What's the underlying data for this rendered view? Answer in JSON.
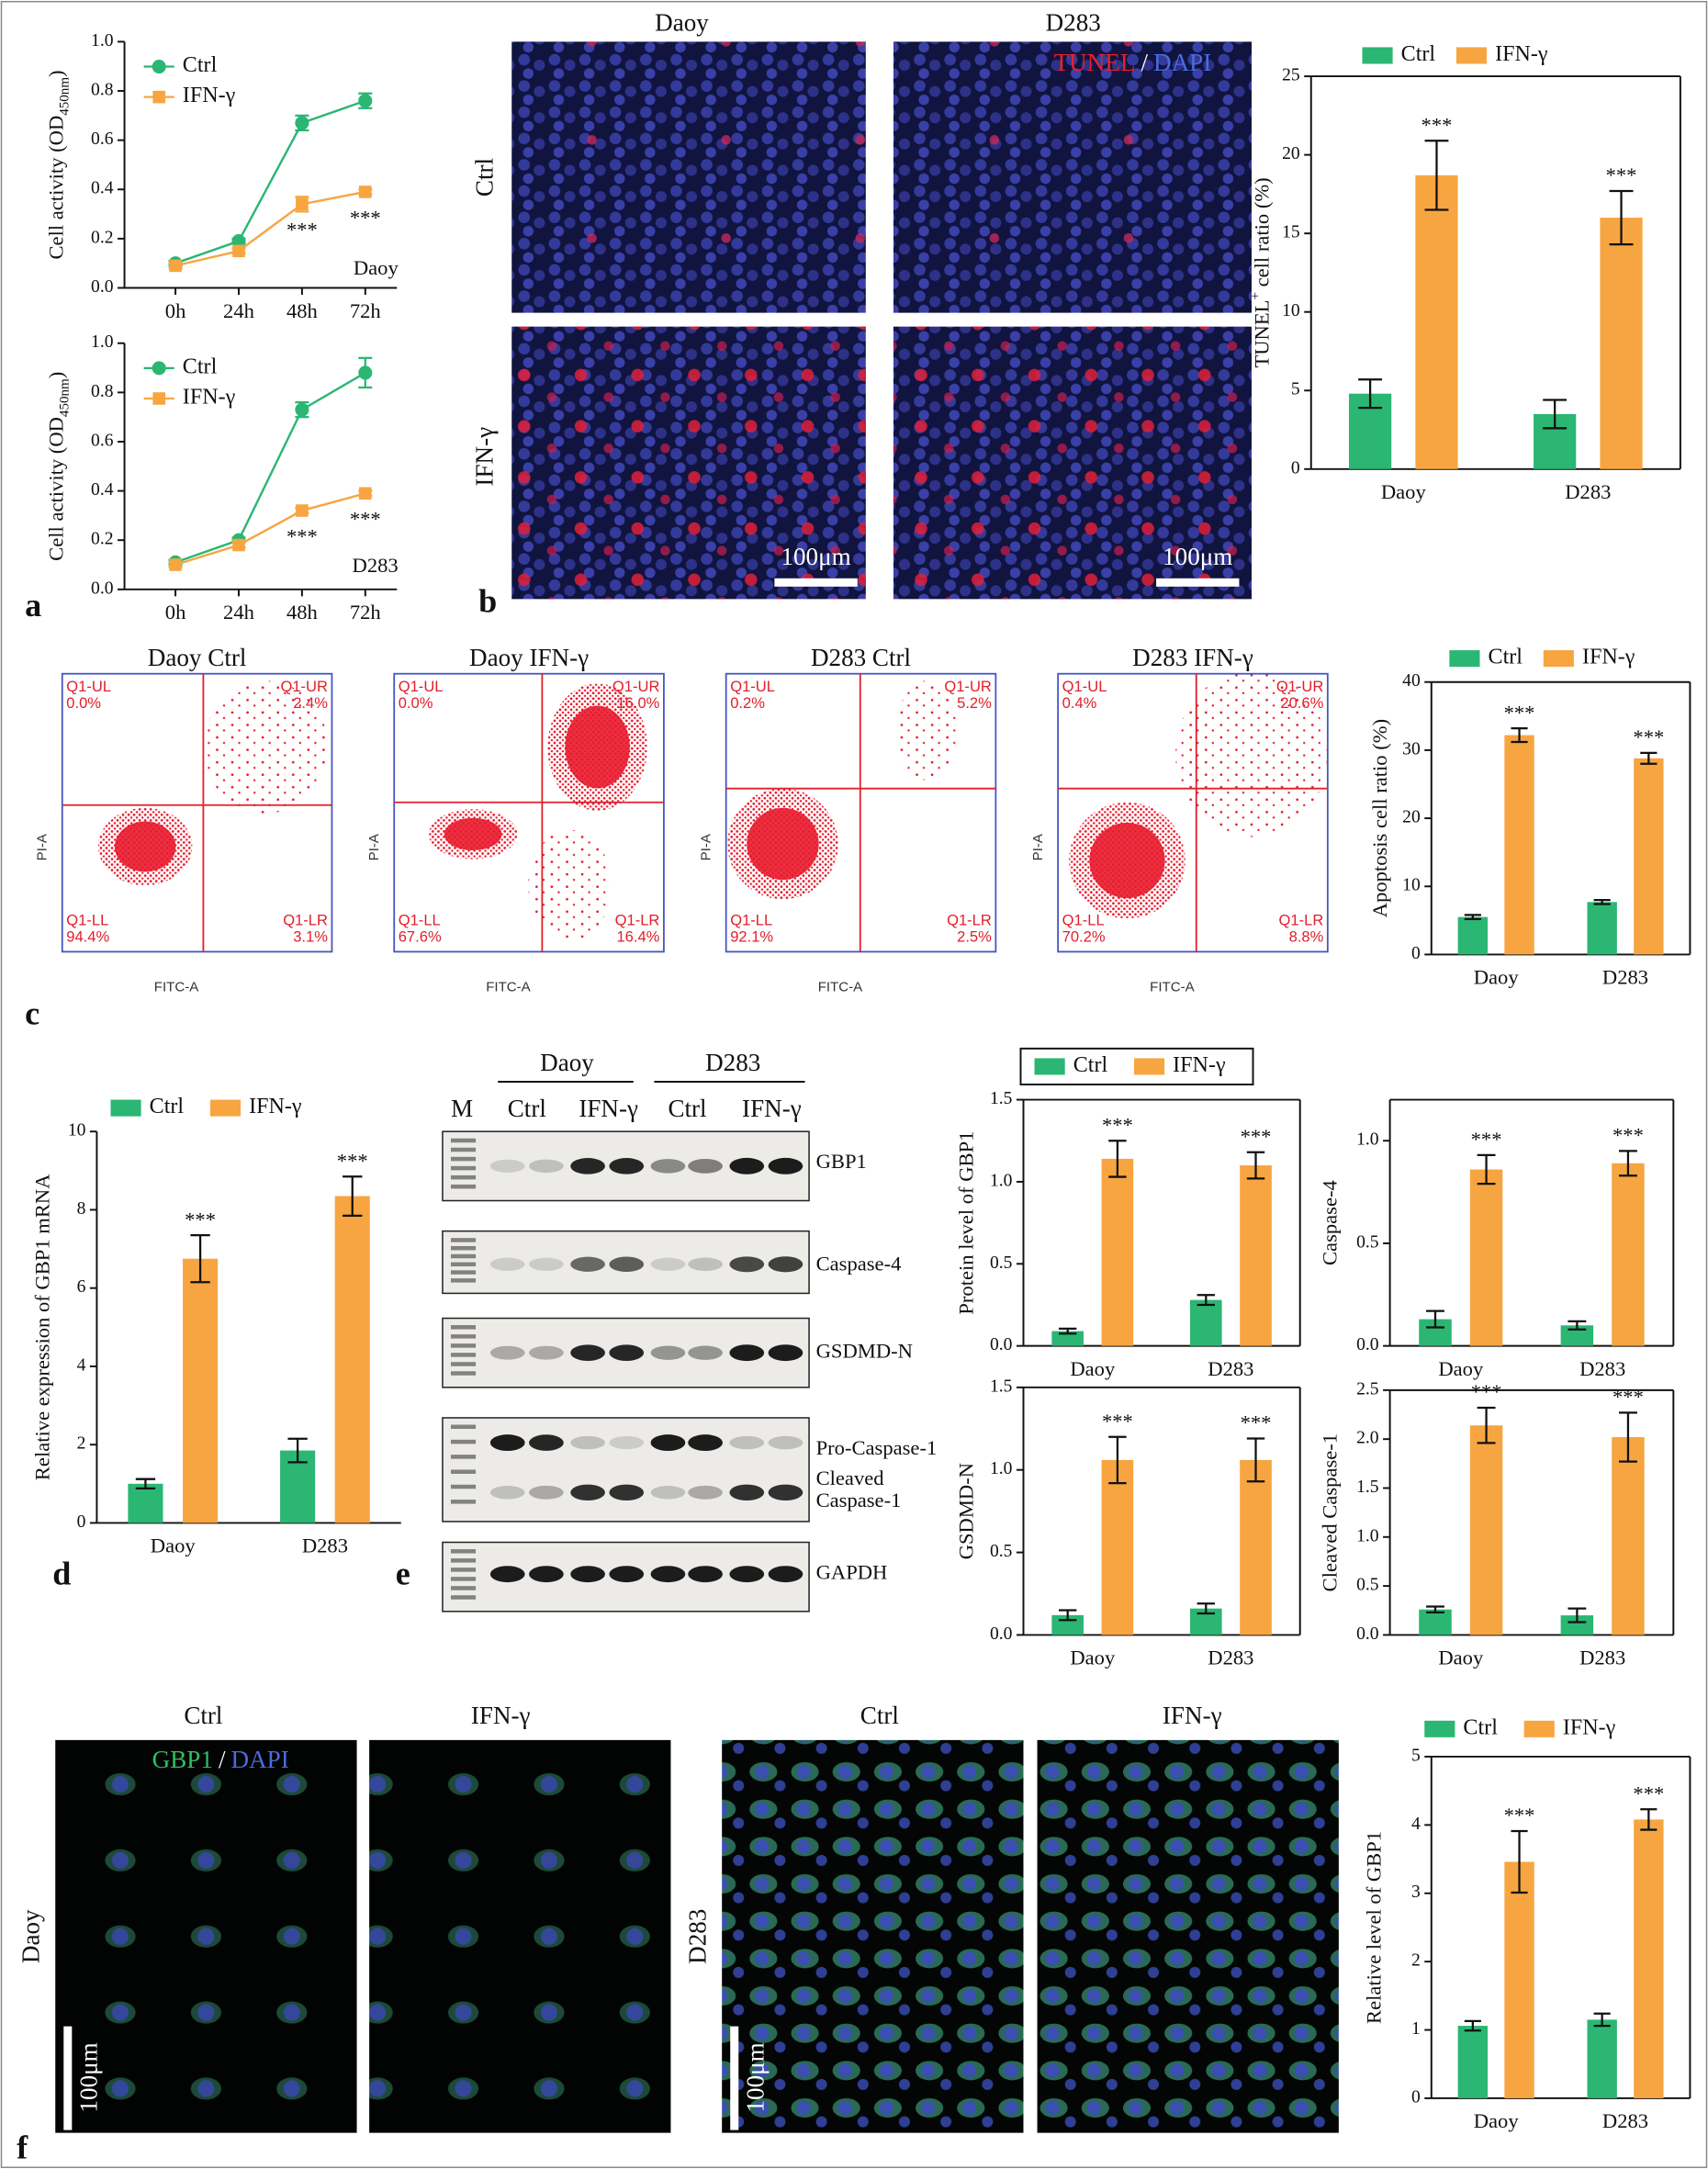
{
  "figure": {
    "panel_labels": [
      "a",
      "b",
      "c",
      "d",
      "e",
      "f"
    ],
    "tunel": {
      "columns": [
        "Daoy",
        "D283"
      ],
      "rows": [
        "Ctrl",
        "IFN-γ"
      ],
      "stain": [
        "TUNEL",
        "/",
        "DAPI"
      ],
      "scale_bar": "100μm"
    },
    "flow": {
      "x_label": "FITC-A",
      "y_label": "PI-A",
      "plots": [
        {
          "title": "Daoy Ctrl",
          "quadrants": [
            [
              "Q1-UL",
              "0.0%"
            ],
            [
              "Q1-UR",
              "2.4%"
            ],
            [
              "Q1-LL",
              "94.4%"
            ],
            [
              "Q1-LR",
              "3.1%"
            ]
          ]
        },
        {
          "title": "Daoy IFN-γ",
          "quadrants": [
            [
              "Q1-UL",
              "0.0%"
            ],
            [
              "Q1-UR",
              "16.0%"
            ],
            [
              "Q1-LL",
              "67.6%"
            ],
            [
              "Q1-LR",
              "16.4%"
            ]
          ]
        },
        {
          "title": "D283 Ctrl",
          "quadrants": [
            [
              "Q1-UL",
              "0.2%"
            ],
            [
              "Q1-UR",
              "5.2%"
            ],
            [
              "Q1-LL",
              "92.1%"
            ],
            [
              "Q1-LR",
              "2.5%"
            ]
          ]
        },
        {
          "title": "D283 IFN-γ",
          "quadrants": [
            [
              "Q1-UL",
              "0.4%"
            ],
            [
              "Q1-UR",
              "20.6%"
            ],
            [
              "Q1-LL",
              "70.2%"
            ],
            [
              "Q1-LR",
              "8.8%"
            ]
          ]
        }
      ]
    },
    "blot": {
      "groups": [
        "Daoy",
        "D283"
      ],
      "lanes": [
        "M",
        "Ctrl",
        "IFN-γ",
        "Ctrl",
        "IFN-γ"
      ],
      "bands": [
        "GBP1",
        "Caspase-4",
        "GSDMD-N",
        "Pro-Caspase-1",
        "Cleaved",
        "Caspase-1",
        "GAPDH"
      ]
    },
    "gbp1_if": {
      "columns": [
        "Ctrl",
        "IFN-γ",
        "Ctrl",
        "IFN-γ"
      ],
      "rows": [
        "Daoy",
        "D283"
      ],
      "stain": [
        "GBP1",
        "/",
        "DAPI"
      ],
      "scale_bar": "100μm"
    }
  },
  "chart_data": [
    {
      "type": "line",
      "label": "Daoy",
      "categories": [
        "0h",
        "24h",
        "48h",
        "72h"
      ],
      "ylabel": [
        {
          "text": "Cell activity (OD"
        },
        {
          "text": "450nm",
          "sub": true
        },
        {
          "text": ")"
        }
      ],
      "series": [
        {
          "name": "Ctrl",
          "color": "#2bb673",
          "marker": "circle",
          "values": [
            0.1,
            0.19,
            0.67,
            0.76
          ],
          "errors": [
            0.01,
            0.01,
            0.03,
            0.03
          ]
        },
        {
          "name": "IFN-γ",
          "color": "#f7a541",
          "marker": "square",
          "values": [
            0.09,
            0.15,
            0.34,
            0.39
          ],
          "errors": [
            0.01,
            0.01,
            0.03,
            0.01
          ]
        }
      ],
      "annotations": [
        "***",
        "***"
      ],
      "ylim": [
        0,
        1
      ],
      "yticks": [
        {
          "value": 0,
          "label": "0.0"
        },
        0.2,
        0.4,
        0.6,
        0.8,
        {
          "value": 1,
          "label": "1.0"
        }
      ],
      "frame": false
    },
    {
      "type": "line",
      "label": "D283",
      "categories": [
        "0h",
        "24h",
        "48h",
        "72h"
      ],
      "ylabel": [
        {
          "text": "Cell activity (OD"
        },
        {
          "text": "450nm",
          "sub": true
        },
        {
          "text": ")"
        }
      ],
      "series": [
        {
          "name": "Ctrl",
          "color": "#2bb673",
          "marker": "circle",
          "values": [
            0.11,
            0.2,
            0.73,
            0.88
          ],
          "errors": [
            0.01,
            0.01,
            0.03,
            0.06
          ]
        },
        {
          "name": "IFN-γ",
          "color": "#f7a541",
          "marker": "square",
          "values": [
            0.1,
            0.18,
            0.32,
            0.39
          ],
          "errors": [
            0.01,
            0.01,
            0.01,
            0.01
          ]
        }
      ],
      "annotations": [
        "***",
        "***"
      ],
      "ylim": [
        0,
        1
      ],
      "yticks": [
        {
          "value": 0,
          "label": "0.0"
        },
        0.2,
        0.4,
        0.6,
        0.8,
        {
          "value": 1,
          "label": "1.0"
        }
      ],
      "frame": false
    },
    {
      "type": "bar",
      "categories": [
        "Daoy",
        "D283"
      ],
      "ylabel": [
        {
          "text": "TUNEL"
        },
        {
          "text": "+",
          "sup": true
        },
        {
          "text": " cell ratio (%)"
        }
      ],
      "series": [
        {
          "name": "Ctrl",
          "color": "#2bb673",
          "values": [
            4.8,
            3.5
          ],
          "errors": [
            0.9,
            0.9
          ]
        },
        {
          "name": "IFN-γ",
          "color": "#f7a541",
          "values": [
            18.7,
            16.0
          ],
          "errors": [
            2.2,
            1.7
          ]
        }
      ],
      "annotations": [
        "***",
        "***"
      ],
      "ylim": [
        0,
        25
      ],
      "yticks": [
        0,
        5,
        10,
        15,
        20,
        25
      ],
      "frame": true
    },
    {
      "type": "bar",
      "categories": [
        "Daoy",
        "D283"
      ],
      "ylabel": "Apoptosis cell ratio (%)",
      "series": [
        {
          "name": "Ctrl",
          "color": "#2bb673",
          "values": [
            5.5,
            7.7
          ],
          "errors": [
            0.3,
            0.3
          ]
        },
        {
          "name": "IFN-γ",
          "color": "#f7a541",
          "values": [
            32.2,
            28.8
          ],
          "errors": [
            1.0,
            0.8
          ]
        }
      ],
      "annotations": [
        "***",
        "***"
      ],
      "ylim": [
        0,
        40
      ],
      "yticks": [
        0,
        10,
        20,
        30,
        40
      ],
      "frame": true
    },
    {
      "type": "bar",
      "categories": [
        "Daoy",
        "D283"
      ],
      "ylabel": "Relative expression of GBP1 mRNA",
      "series": [
        {
          "name": "Ctrl",
          "color": "#2bb673",
          "values": [
            1.0,
            1.85
          ],
          "errors": [
            0.12,
            0.3
          ]
        },
        {
          "name": "IFN-γ",
          "color": "#f7a541",
          "values": [
            6.75,
            8.35
          ],
          "errors": [
            0.6,
            0.5
          ]
        }
      ],
      "annotations": [
        "***",
        "***"
      ],
      "ylim": [
        0,
        10
      ],
      "yticks": [
        0,
        2,
        4,
        6,
        8,
        10
      ],
      "frame": false
    },
    {
      "type": "bar",
      "categories": [
        "Daoy",
        "D283"
      ],
      "ylabel": "Protein level of GBP1",
      "series": [
        {
          "name": "Ctrl",
          "color": "#2bb673",
          "values": [
            0.09,
            0.28
          ],
          "errors": [
            0.015,
            0.03
          ]
        },
        {
          "name": "IFN-γ",
          "color": "#f7a541",
          "values": [
            1.14,
            1.1
          ],
          "errors": [
            0.11,
            0.08
          ]
        }
      ],
      "annotations": [
        "***",
        "***"
      ],
      "ylim": [
        0,
        1.5
      ],
      "yticks": [
        {
          "value": 0,
          "label": "0.0"
        },
        0.5,
        {
          "value": 1,
          "label": "1.0"
        },
        1.5
      ],
      "frame": true
    },
    {
      "type": "bar",
      "categories": [
        "Daoy",
        "D283"
      ],
      "ylabel": "Caspase-4",
      "series": [
        {
          "color": "#2bb673",
          "values": [
            0.13,
            0.1
          ],
          "errors": [
            0.04,
            0.02
          ]
        },
        {
          "color": "#f7a541",
          "values": [
            0.86,
            0.89
          ],
          "errors": [
            0.07,
            0.06
          ]
        }
      ],
      "annotations": [
        "***",
        "***"
      ],
      "ylim": [
        0,
        1.2
      ],
      "yticks": [
        {
          "value": 0,
          "label": "0.0"
        },
        0.5,
        {
          "value": 1,
          "label": "1.0"
        }
      ],
      "frame": true
    },
    {
      "type": "bar",
      "categories": [
        "Daoy",
        "D283"
      ],
      "ylabel": "GSDMD-N",
      "series": [
        {
          "color": "#2bb673",
          "values": [
            0.12,
            0.16
          ],
          "errors": [
            0.03,
            0.03
          ]
        },
        {
          "color": "#f7a541",
          "values": [
            1.06,
            1.06
          ],
          "errors": [
            0.14,
            0.13
          ]
        }
      ],
      "annotations": [
        "***",
        "***"
      ],
      "ylim": [
        0,
        1.5
      ],
      "yticks": [
        {
          "value": 0,
          "label": "0.0"
        },
        0.5,
        {
          "value": 1,
          "label": "1.0"
        },
        1.5
      ],
      "frame": true
    },
    {
      "type": "bar",
      "categories": [
        "Daoy",
        "D283"
      ],
      "ylabel": "Cleaved Caspase-1",
      "series": [
        {
          "color": "#2bb673",
          "values": [
            0.26,
            0.2
          ],
          "errors": [
            0.03,
            0.07
          ]
        },
        {
          "color": "#f7a541",
          "values": [
            2.14,
            2.02
          ],
          "errors": [
            0.18,
            0.25
          ]
        }
      ],
      "annotations": [
        "***",
        "***"
      ],
      "ylim": [
        0,
        2.5
      ],
      "yticks": [
        {
          "value": 0,
          "label": "0.0"
        },
        0.5,
        {
          "value": 1,
          "label": "1.0"
        },
        1.5,
        {
          "value": 2,
          "label": "2.0"
        },
        2.5
      ],
      "frame": true
    },
    {
      "type": "bar",
      "categories": [
        "Daoy",
        "D283"
      ],
      "ylabel": "Relative level of GBP1",
      "series": [
        {
          "name": "Ctrl",
          "color": "#2bb673",
          "values": [
            1.06,
            1.15
          ],
          "errors": [
            0.07,
            0.09
          ]
        },
        {
          "name": "IFN-γ",
          "color": "#f7a541",
          "values": [
            3.46,
            4.08
          ],
          "errors": [
            0.45,
            0.15
          ]
        }
      ],
      "annotations": [
        "***",
        "***"
      ],
      "ylim": [
        0,
        5
      ],
      "yticks": [
        0,
        1,
        2,
        3,
        4,
        5
      ],
      "frame": true
    }
  ]
}
